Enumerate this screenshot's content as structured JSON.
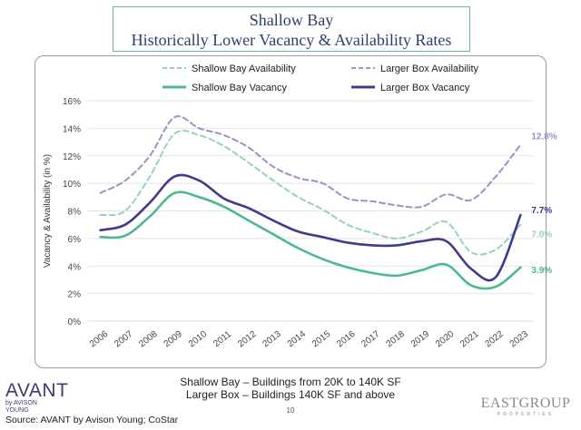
{
  "header": {
    "title_line1": "Shallow Bay",
    "title_line2": "Historically Lower Vacancy & Availability Rates"
  },
  "chart_data": {
    "type": "line",
    "ylabel": "Vacancy & Availability (in %)",
    "xlabel": "",
    "ylim": [
      0,
      16
    ],
    "yticks": [
      0,
      2,
      4,
      6,
      8,
      10,
      12,
      14,
      16
    ],
    "ytick_labels": [
      "0%",
      "2%",
      "4%",
      "6%",
      "8%",
      "10%",
      "12%",
      "14%",
      "16%"
    ],
    "gridlines": true,
    "legend_position": "top",
    "categories": [
      "2006",
      "2007",
      "2008",
      "2009",
      "2010",
      "2011",
      "2012",
      "2013",
      "2014",
      "2015",
      "2016",
      "2017",
      "2018",
      "2019",
      "2020",
      "2021",
      "2022",
      "2023"
    ],
    "series": [
      {
        "name": "Shallow Bay Availability",
        "color": "#95d2bd",
        "style": "dashed",
        "values": [
          7.7,
          8.0,
          10.5,
          13.6,
          13.5,
          12.7,
          11.5,
          10.2,
          9.0,
          8.1,
          7.0,
          6.4,
          6.0,
          6.5,
          7.2,
          5.0,
          5.2,
          7.0
        ],
        "end_label": "7.0%"
      },
      {
        "name": "Larger Box Availability",
        "color": "#9b92c6",
        "style": "dashed",
        "values": [
          9.3,
          10.2,
          12.0,
          14.8,
          14.0,
          13.5,
          12.6,
          11.2,
          10.4,
          10.0,
          8.9,
          8.7,
          8.4,
          8.3,
          9.2,
          8.8,
          10.5,
          12.8
        ],
        "end_label": "12.8%"
      },
      {
        "name": "Shallow Bay Vacancy",
        "color": "#4db892",
        "style": "solid",
        "values": [
          6.1,
          6.2,
          7.6,
          9.3,
          9.0,
          8.3,
          7.3,
          6.3,
          5.3,
          4.5,
          3.9,
          3.5,
          3.3,
          3.7,
          4.1,
          2.6,
          2.5,
          3.9
        ],
        "end_label": "3.9%"
      },
      {
        "name": "Larger Box Vacancy",
        "color": "#3f3a8c",
        "style": "solid",
        "values": [
          6.6,
          7.0,
          8.6,
          10.5,
          10.2,
          8.9,
          8.2,
          7.3,
          6.5,
          6.1,
          5.7,
          5.5,
          5.5,
          5.8,
          5.8,
          3.8,
          3.2,
          7.7
        ],
        "end_label": "7.7%"
      }
    ]
  },
  "footer": {
    "note_line1": "Shallow Bay – Buildings from 20K to 140K SF",
    "note_line2": "Larger Box – Buildings 140K SF and above",
    "page_number": "10",
    "source": "Source: AVANT by Avison Young; CoStar",
    "avant_logo_main": "AVANT",
    "avant_logo_sub": "by AVISON YOUNG",
    "eastgroup_logo_main": "EASTGROUP",
    "eastgroup_logo_sub": "PROPERTIES"
  }
}
